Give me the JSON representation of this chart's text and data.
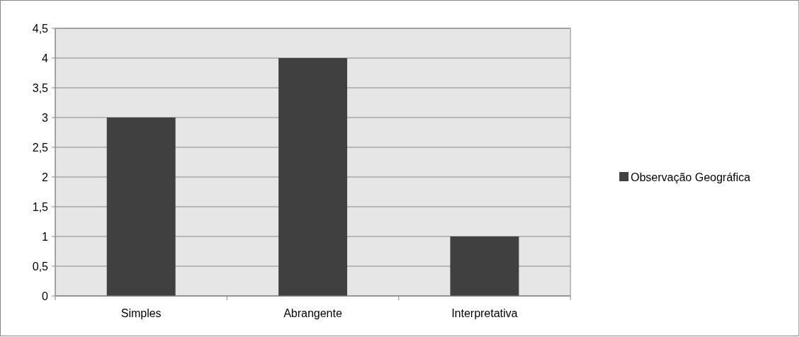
{
  "chart_data": {
    "type": "bar",
    "categories": [
      "Simples",
      "Abrangente",
      "Interpretativa"
    ],
    "series": [
      {
        "name": "Observação Geográfica",
        "color": "#404040",
        "values": [
          3,
          4,
          1
        ]
      }
    ],
    "ylim": [
      0,
      4.5
    ],
    "yticks": [
      0,
      {
        "value": 0.5,
        "label": "0,5"
      },
      1,
      {
        "value": 1.5,
        "label": "1,5"
      },
      2,
      {
        "value": 2.5,
        "label": "2,5"
      },
      3,
      {
        "value": 3.5,
        "label": "3,5"
      },
      4,
      {
        "value": 4.5,
        "label": "4,5"
      }
    ],
    "grid": "y",
    "legend": "right"
  }
}
